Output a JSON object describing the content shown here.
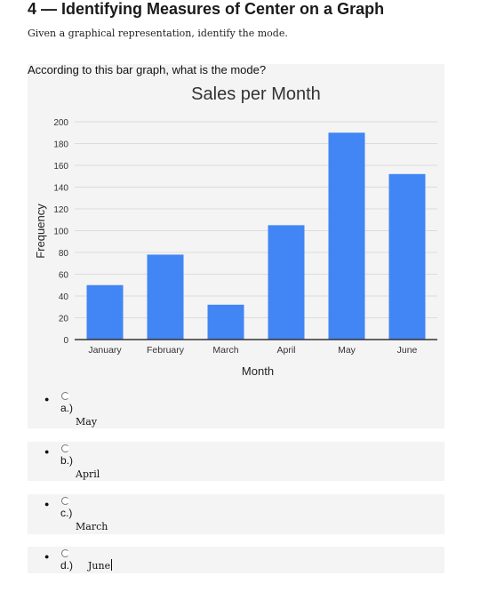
{
  "header": {
    "title": "4 — Identifying Measures of Center on a Graph",
    "subtitle": "Given a graphical representation, identify the mode."
  },
  "question": {
    "text": "According to this bar graph, what is the mode?"
  },
  "chart_data": {
    "type": "bar",
    "title": "Sales per Month",
    "xlabel": "Month",
    "ylabel": "Frequency",
    "categories": [
      "January",
      "February",
      "March",
      "April",
      "May",
      "June"
    ],
    "values": [
      50,
      78,
      32,
      105,
      190,
      152
    ],
    "ylim": [
      0,
      200
    ],
    "yticks": [
      0,
      20,
      40,
      60,
      80,
      100,
      120,
      140,
      160,
      180,
      200
    ],
    "grid": true,
    "bar_color": "#4285f4"
  },
  "options": [
    {
      "letter": "a.)",
      "answer": "May"
    },
    {
      "letter": "b.)",
      "answer": "April"
    },
    {
      "letter": "c.)",
      "answer": "March"
    },
    {
      "letter": "d.)",
      "answer": "June"
    }
  ],
  "icons": {
    "bullet": "bullet-dot",
    "radio": "radio-button"
  }
}
